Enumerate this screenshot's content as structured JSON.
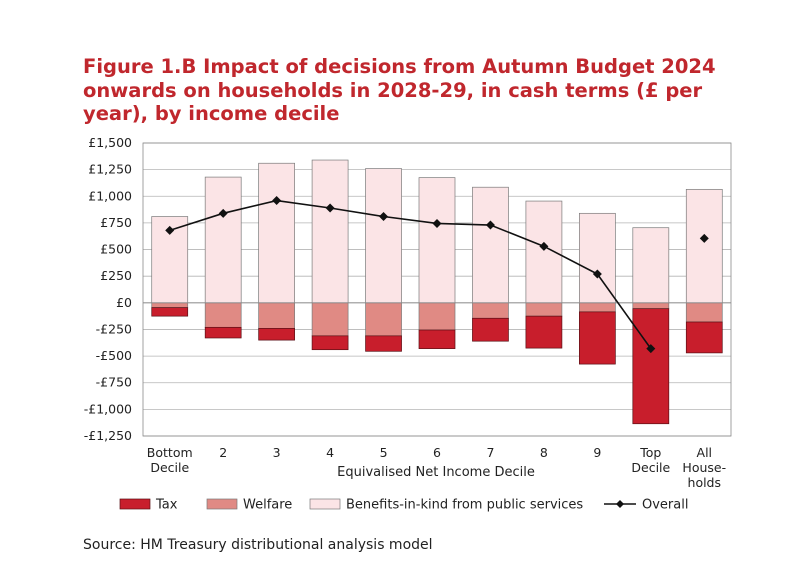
{
  "header": {
    "title_lines": [
      "Figure 1.B Impact of decisions from Autumn Budget 2024",
      "onwards on households in 2028-29, in cash terms (£ per",
      "year), by income decile"
    ]
  },
  "footer": {
    "source": "Source: HM Treasury distributional analysis model"
  },
  "colors": {
    "tax": "#c81e2c",
    "welfare": "#e08a84",
    "benefits": "#fbe4e6",
    "overall": "#111111",
    "title": "#c0272d"
  },
  "chart_data": {
    "type": "bar",
    "stacked": true,
    "title": "Figure 1.B Impact of decisions from Autumn Budget 2024 onwards on households in 2028-29, in cash terms (£ per year), by income decile",
    "xlabel": "Equivalised Net Income Decile",
    "ylabel": "",
    "ylim": [
      -1250,
      1500
    ],
    "yticks": [
      1500,
      1250,
      1000,
      750,
      500,
      250,
      0,
      -250,
      -500,
      -750,
      -1000,
      -1250
    ],
    "ytick_labels": [
      "£1,500",
      "£1,250",
      "£1,000",
      "£750",
      "£500",
      "£250",
      "£0",
      "-£250",
      "-£500",
      "-£750",
      "-£1,000",
      "-£1,250"
    ],
    "grid": "horizontal",
    "legend_position": "bottom",
    "categories": [
      [
        "Bottom",
        "Decile"
      ],
      [
        "2"
      ],
      [
        "3"
      ],
      [
        "4"
      ],
      [
        "5"
      ],
      [
        "6"
      ],
      [
        "7"
      ],
      [
        "8"
      ],
      [
        "9"
      ],
      [
        "Top",
        "Decile"
      ],
      [
        "All",
        "House-",
        "holds"
      ]
    ],
    "series": [
      {
        "name": "Tax",
        "type": "bar",
        "values": [
          -80,
          -100,
          -110,
          -130,
          -145,
          -175,
          -215,
          -300,
          -490,
          -1080,
          -290
        ]
      },
      {
        "name": "Welfare",
        "type": "bar",
        "values": [
          -45,
          -230,
          -240,
          -310,
          -310,
          -255,
          -145,
          -125,
          -85,
          -55,
          -180
        ]
      },
      {
        "name": "Benefits-in-kind from public services",
        "type": "bar",
        "values": [
          810,
          1180,
          1310,
          1340,
          1260,
          1175,
          1085,
          955,
          840,
          705,
          1065
        ]
      },
      {
        "name": "Overall",
        "type": "line",
        "values": [
          680,
          840,
          960,
          890,
          810,
          745,
          730,
          530,
          270,
          -430,
          605
        ],
        "line_excludes_last": true
      }
    ]
  }
}
